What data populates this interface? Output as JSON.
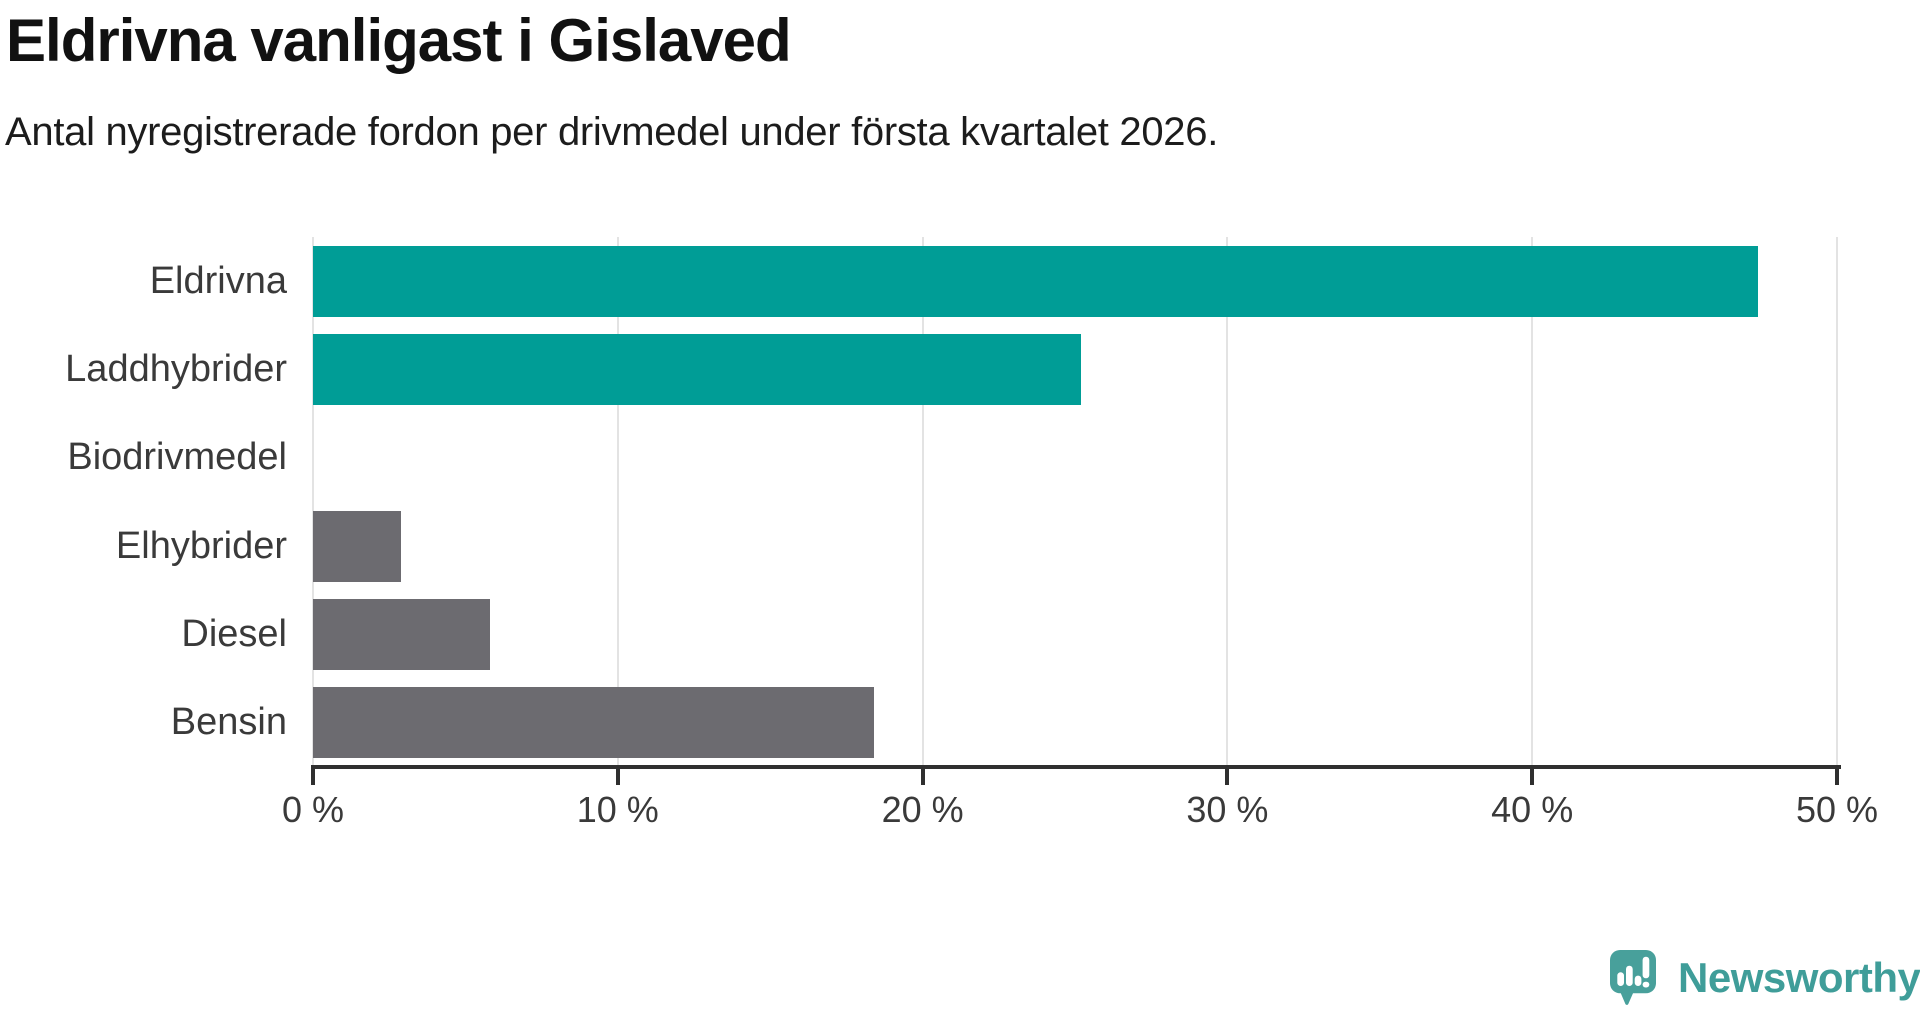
{
  "header": {
    "title": "Eldrivna vanligast i Gislaved",
    "subtitle": "Antal nyregistrerade fordon per drivmedel under första kvartalet 2026."
  },
  "chart_data": {
    "type": "bar",
    "orientation": "horizontal",
    "title": "Eldrivna vanligast i Gislaved",
    "subtitle": "Antal nyregistrerade fordon per drivmedel under första kvartalet 2026.",
    "categories": [
      "Eldrivna",
      "Laddhybrider",
      "Biodrivmedel",
      "Elhybrider",
      "Diesel",
      "Bensin"
    ],
    "values": [
      47.4,
      25.2,
      0,
      2.9,
      5.8,
      18.4
    ],
    "unit": "%",
    "bar_colors": [
      "#009D96",
      "#009D96",
      "#6C6B70",
      "#6C6B70",
      "#6C6B70",
      "#6C6B70"
    ],
    "xlim": [
      0,
      50
    ],
    "x_ticks": [
      0,
      10,
      20,
      30,
      40,
      50
    ],
    "x_tick_labels": [
      "0 %",
      "10 %",
      "20 %",
      "30 %",
      "40 %",
      "50 %"
    ],
    "grid": "vertical gridlines at every 10%",
    "legend": "none"
  },
  "branding": {
    "logo_text": "Newsworthy",
    "logo_color": "#3F9D99",
    "logo_icon": "speech-bubble-bar-chart"
  },
  "colors": {
    "accent_teal": "#009D96",
    "neutral_gray": "#6C6B70",
    "gridline": "#E3E3E3",
    "axis": "#2F2F2F",
    "title_text": "#111111",
    "label_text": "#3A3A3A"
  }
}
